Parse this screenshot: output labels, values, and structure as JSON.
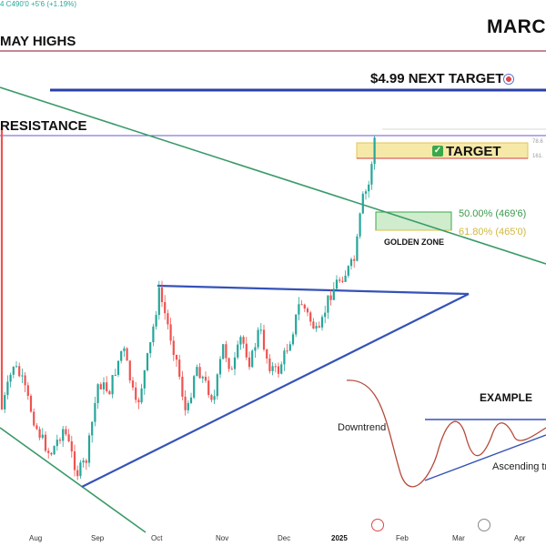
{
  "chart_data": {
    "type": "candlestick",
    "title": "MARC",
    "ticker_line": "4 C490'0 +5'6 (+1.19%)",
    "x_ticks": [
      "Aug",
      "Sep",
      "Oct",
      "Nov",
      "Dec",
      "2025",
      "Feb",
      "Mar",
      "Apr"
    ],
    "levels": {
      "may_highs": "MAY HIGHS",
      "resistance": "RESISTANCE",
      "next_target": "$4.99 NEXT TARGET",
      "target": "TARGET",
      "fib_top": "78.6",
      "fib_bottom": "161.",
      "golden_zone_50": "50.00% (469'6)",
      "golden_zone_618": "61.80% (465'0)",
      "golden_zone_label": "GOLDEN ZONE"
    },
    "example": {
      "title": "EXAMPLE",
      "downtrend_label": "Downtrend",
      "ascending_label": "Ascending tr"
    },
    "colors": {
      "up": "#26a69a",
      "down": "#ef5350",
      "trendline_blue": "#3552b8",
      "trendline_green": "#3a9a6a",
      "may_highs_line": "#a04050",
      "resistance_line": "#6a5acd",
      "golden_zone": "#3aa84a",
      "target_box": "#e8c84a"
    },
    "icons": [
      "target-icon",
      "flag-icon"
    ]
  }
}
